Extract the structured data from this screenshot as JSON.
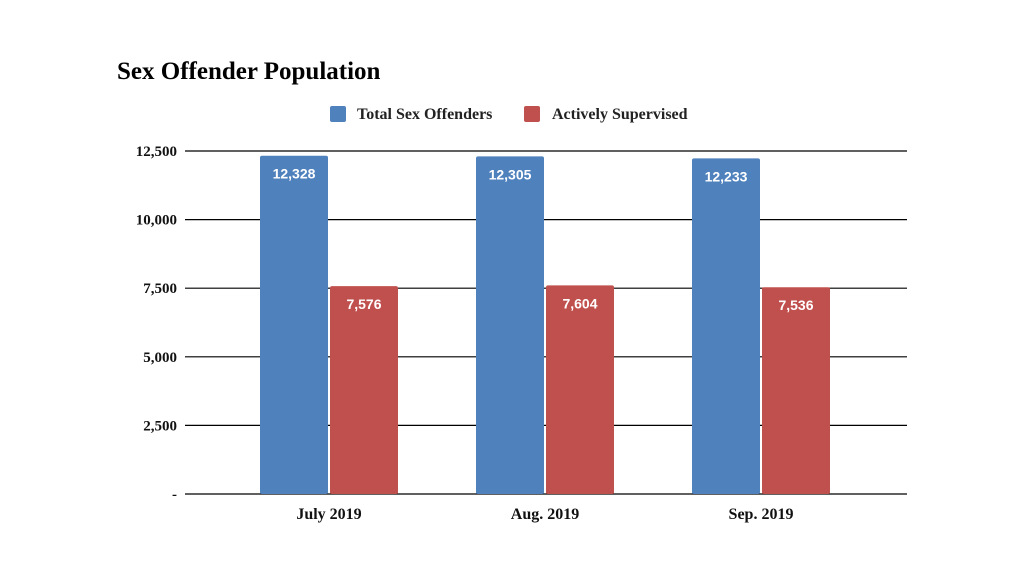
{
  "chart_data": {
    "type": "bar",
    "title": "Sex Offender Population",
    "categories": [
      "July 2019",
      "Aug. 2019",
      "Sep. 2019"
    ],
    "series": [
      {
        "name": "Total Sex Offenders",
        "color": "#4f81bd",
        "values": [
          12328,
          12305,
          12233
        ],
        "labels": [
          "12,328",
          "12,305",
          "12,233"
        ]
      },
      {
        "name": "Actively Supervised",
        "color": "#c0504d",
        "values": [
          7576,
          7604,
          7536
        ],
        "labels": [
          "7,576",
          "7,604",
          "7,536"
        ]
      }
    ],
    "ylim": [
      0,
      12500
    ],
    "yticks": [
      0,
      2500,
      5000,
      7500,
      10000,
      12500
    ],
    "ytick_labels": [
      "-",
      "2,500",
      "5,000",
      "7,500",
      "10,000",
      "12,500"
    ],
    "xlabel": "",
    "ylabel": "",
    "grid": true,
    "legend_position": "top-center"
  }
}
